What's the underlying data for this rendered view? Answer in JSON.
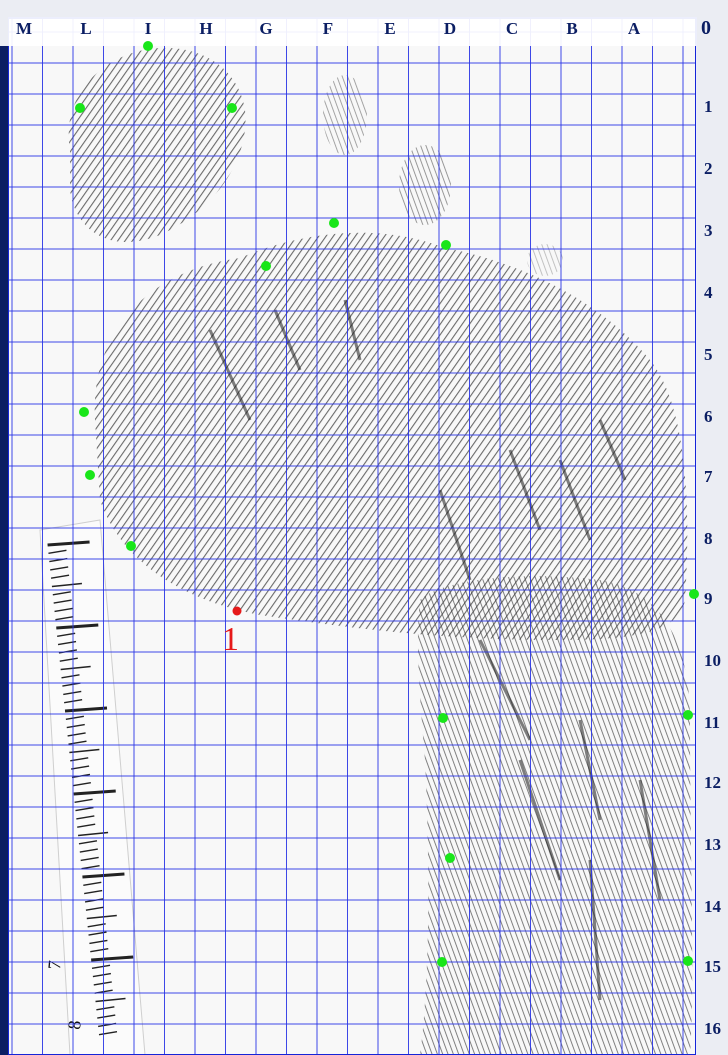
{
  "grid": {
    "column_labels": [
      "M",
      "L",
      "I",
      "H",
      "G",
      "F",
      "E",
      "D",
      "C",
      "B",
      "A",
      "0"
    ],
    "row_labels": [
      "1",
      "2",
      "3",
      "4",
      "5",
      "6",
      "7",
      "8",
      "9",
      "10",
      "11",
      "12",
      "13",
      "14",
      "15",
      "16"
    ]
  },
  "marker": {
    "label": "1"
  },
  "ruler": {
    "labels": [
      "7",
      "8"
    ]
  },
  "colors": {
    "frame": "#0b1e63",
    "paper": "#f2f2f2",
    "grid": "#2a36e6",
    "landmark": "#19e619",
    "marker": "#e61919"
  }
}
